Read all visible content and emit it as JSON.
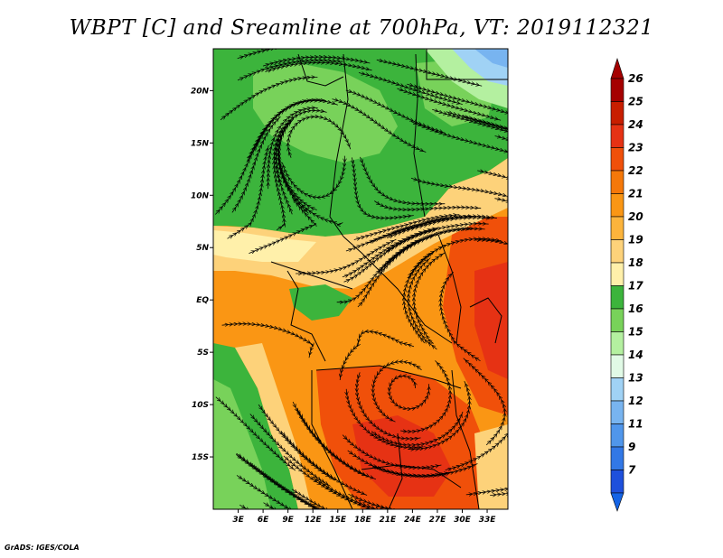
{
  "title": "WBPT [C] and Sreamline at 700hPa, VT: 2019112321",
  "credit": "GrADS: IGES/COLA",
  "map": {
    "lat_ticks": [
      {
        "lat": 20,
        "label": "20N"
      },
      {
        "lat": 15,
        "label": "15N"
      },
      {
        "lat": 10,
        "label": "10N"
      },
      {
        "lat": 5,
        "label": "5N"
      },
      {
        "lat": 0,
        "label": "EQ"
      },
      {
        "lat": -5,
        "label": "5S"
      },
      {
        "lat": -10,
        "label": "10S"
      },
      {
        "lat": -15,
        "label": "15S"
      }
    ],
    "lon_ticks": [
      {
        "lon": 3,
        "label": "3E"
      },
      {
        "lon": 6,
        "label": "6E"
      },
      {
        "lon": 9,
        "label": "9E"
      },
      {
        "lon": 12,
        "label": "12E"
      },
      {
        "lon": 15,
        "label": "15E"
      },
      {
        "lon": 18,
        "label": "18E"
      },
      {
        "lon": 21,
        "label": "21E"
      },
      {
        "lon": 24,
        "label": "24E"
      },
      {
        "lon": 27,
        "label": "27E"
      },
      {
        "lon": 30,
        "label": "30E"
      },
      {
        "lon": 33,
        "label": "33E"
      }
    ]
  },
  "colorbar": {
    "levels": [
      {
        "label": "26",
        "color": "#a50000"
      },
      {
        "label": "25",
        "color": "#c81e00"
      },
      {
        "label": "24",
        "color": "#e63214"
      },
      {
        "label": "23",
        "color": "#f0500a"
      },
      {
        "label": "22",
        "color": "#f5780a"
      },
      {
        "label": "21",
        "color": "#fa9614"
      },
      {
        "label": "20",
        "color": "#fcb43c"
      },
      {
        "label": "19",
        "color": "#fdd27a"
      },
      {
        "label": "18",
        "color": "#fff0aa"
      },
      {
        "label": "17",
        "color": "#3cb43c"
      },
      {
        "label": "16",
        "color": "#78d25a"
      },
      {
        "label": "15",
        "color": "#b4f0a0"
      },
      {
        "label": "14",
        "color": "#e1fae6"
      },
      {
        "label": "13",
        "color": "#a0d2f5"
      },
      {
        "label": "12",
        "color": "#78b4f0"
      },
      {
        "label": "11",
        "color": "#5096eb"
      },
      {
        "label": "9",
        "color": "#3278e6"
      },
      {
        "label": "7",
        "color": "#1e50dc"
      }
    ],
    "bottom_color": "#1464e6",
    "top_color": "#a50000"
  }
}
